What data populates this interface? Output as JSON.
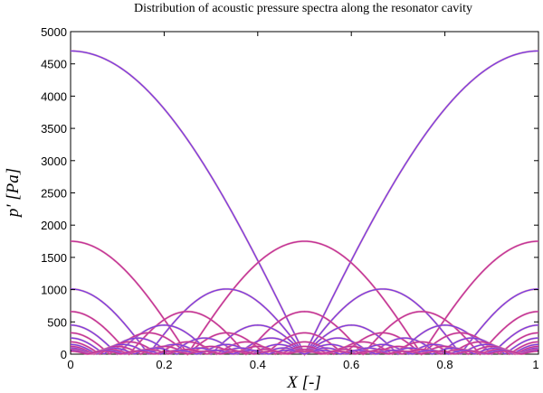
{
  "chart_data": {
    "type": "line",
    "title": "Distribution of acoustic pressure spectra along the resonator cavity",
    "xlabel": "X [-]",
    "ylabel": "p' [Pa]",
    "xlim": [
      0,
      1
    ],
    "ylim": [
      0,
      5000
    ],
    "xticks": [
      "0",
      "0.2",
      "0.4",
      "0.6",
      "0.8",
      "1"
    ],
    "yticks": [
      "0",
      "500",
      "1000",
      "1500",
      "2000",
      "2500",
      "3000",
      "3500",
      "4000",
      "4500",
      "5000"
    ],
    "grid": false,
    "legend": "none",
    "series_shape": "|cos(n·pi·x)|",
    "colors": {
      "primary": "#7a3de0",
      "secondary": "#c0309a",
      "faint": "#e88a9a"
    },
    "series": [
      {
        "mode": 1,
        "amplitude": 4700
      },
      {
        "mode": 2,
        "amplitude": 1750
      },
      {
        "mode": 3,
        "amplitude": 1010
      },
      {
        "mode": 4,
        "amplitude": 660
      },
      {
        "mode": 5,
        "amplitude": 450
      },
      {
        "mode": 6,
        "amplitude": 330
      },
      {
        "mode": 7,
        "amplitude": 250
      },
      {
        "mode": 8,
        "amplitude": 190
      },
      {
        "mode": 9,
        "amplitude": 150
      },
      {
        "mode": 10,
        "amplitude": 120
      },
      {
        "mode": 11,
        "amplitude": 95
      },
      {
        "mode": 12,
        "amplitude": 75
      },
      {
        "mode": 13,
        "amplitude": 60
      },
      {
        "mode": 14,
        "amplitude": 45
      }
    ]
  }
}
